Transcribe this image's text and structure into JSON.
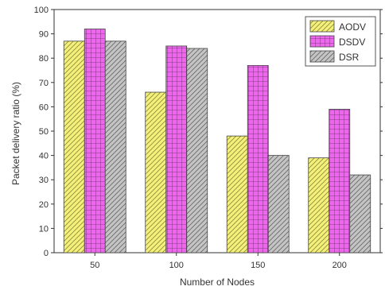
{
  "chart_data": {
    "type": "bar",
    "title": "",
    "xlabel": "Number of Nodes",
    "ylabel": "Packet delivery ratio (%)",
    "categories": [
      "50",
      "100",
      "150",
      "200"
    ],
    "ylim": [
      0,
      100
    ],
    "yticks": [
      0,
      10,
      20,
      30,
      40,
      50,
      60,
      70,
      80,
      90,
      100
    ],
    "series": [
      {
        "name": "AODV",
        "values": [
          87,
          66,
          48,
          39
        ],
        "color": "#f4f07a",
        "pattern": "diagonal-hatch"
      },
      {
        "name": "DSDV",
        "values": [
          92,
          85,
          77,
          59
        ],
        "color": "#ee66ee",
        "pattern": "grid"
      },
      {
        "name": "DSR",
        "values": [
          87,
          84,
          40,
          32
        ],
        "color": "#bdbdbd",
        "pattern": "diagonal-hatch"
      }
    ],
    "legend_position": "top-right",
    "grid": false
  }
}
